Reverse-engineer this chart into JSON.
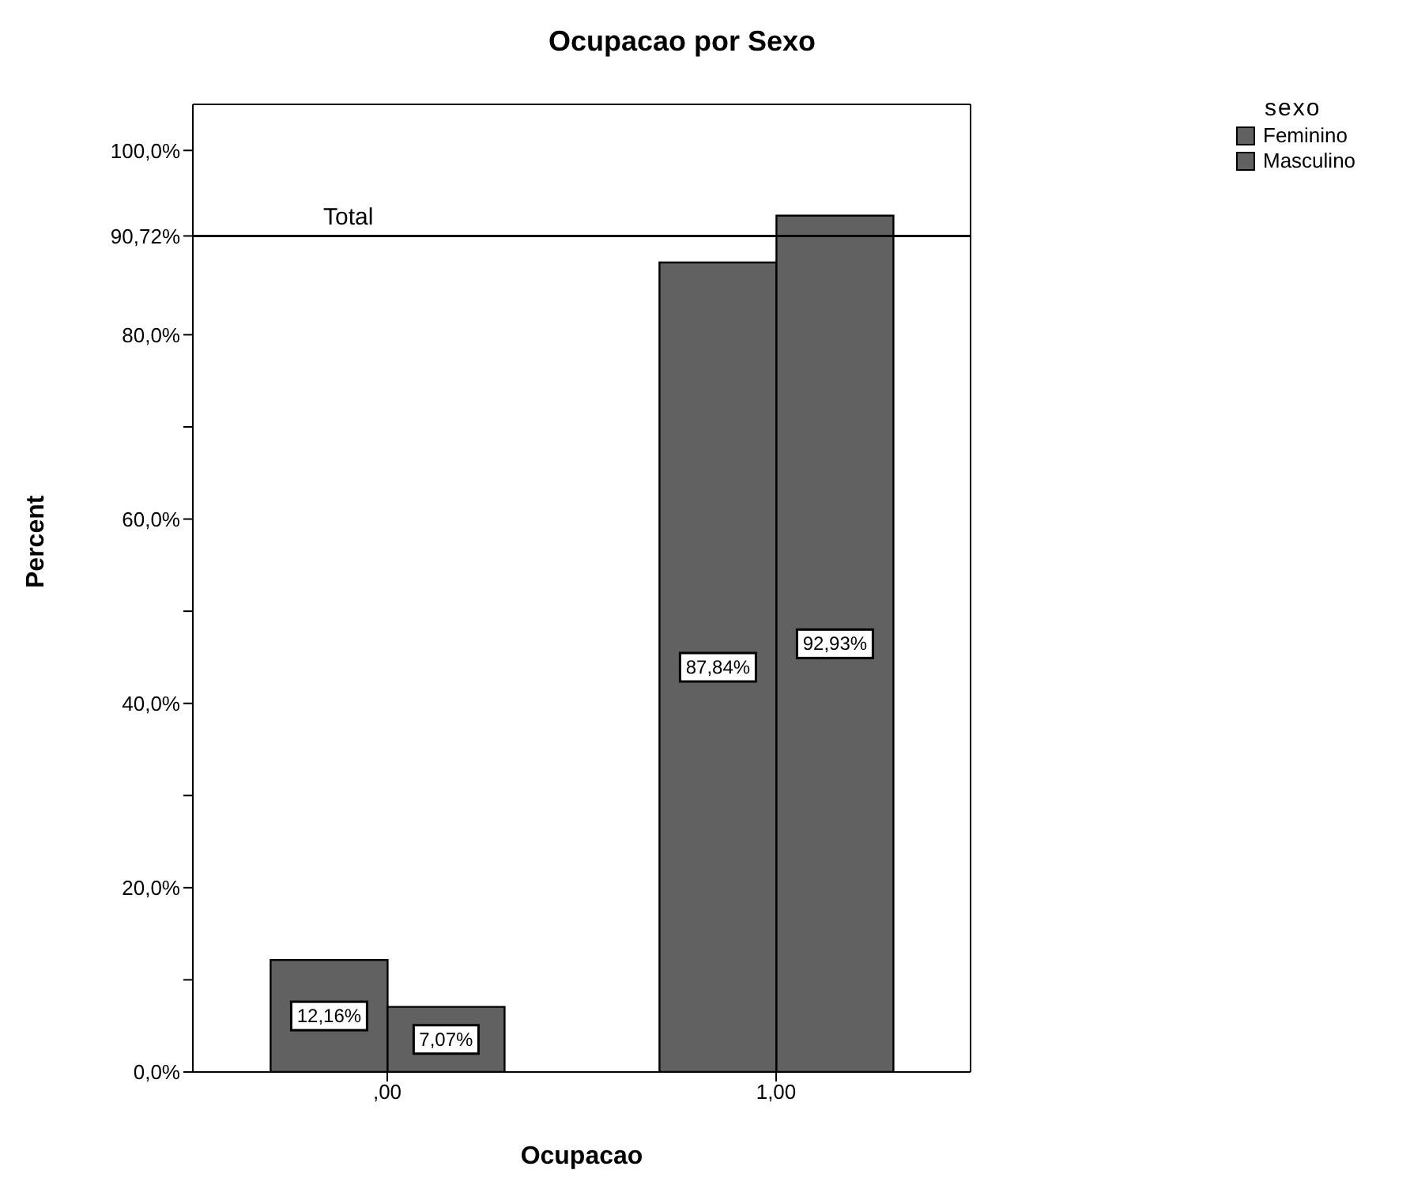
{
  "chart_data": {
    "type": "bar",
    "title": "Ocupacao por Sexo",
    "xlabel": "Ocupacao",
    "ylabel": "Percent",
    "legend_title": "sexo",
    "categories": [
      ",00",
      "1,00"
    ],
    "series": [
      {
        "name": "Feminino",
        "color": "#616161",
        "values": [
          12.16,
          87.84
        ],
        "value_labels": [
          "12,16%",
          "87,84%"
        ]
      },
      {
        "name": "Masculino",
        "color": "#616161",
        "values": [
          7.07,
          92.93
        ],
        "value_labels": [
          "7,07%",
          "92,93%"
        ]
      }
    ],
    "ylim": [
      0,
      105
    ],
    "yticks": [
      {
        "value": 0,
        "label": "0,0%"
      },
      {
        "value": 10,
        "label": null
      },
      {
        "value": 20,
        "label": "20,0%"
      },
      {
        "value": 30,
        "label": null
      },
      {
        "value": 40,
        "label": "40,0%"
      },
      {
        "value": 50,
        "label": null
      },
      {
        "value": 60,
        "label": "60,0%"
      },
      {
        "value": 70,
        "label": null
      },
      {
        "value": 80,
        "label": "80,0%"
      },
      {
        "value": 90.72,
        "label": "90,72%"
      },
      {
        "value": 100,
        "label": "100,0%"
      }
    ],
    "ref_lines": [
      {
        "axis": "y",
        "value": 90.72,
        "label": "Total",
        "color": "#000000"
      }
    ],
    "legend": "top right"
  }
}
